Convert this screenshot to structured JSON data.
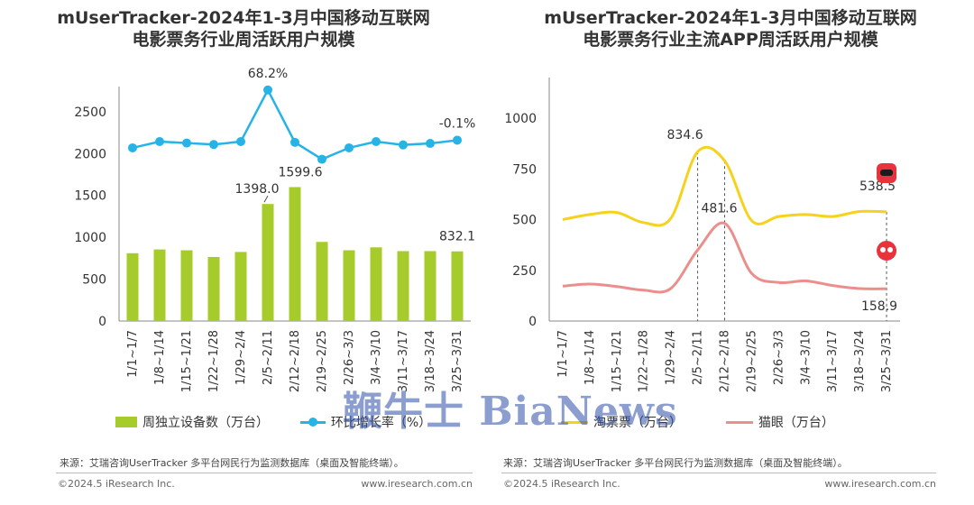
{
  "watermark": "鞭牛士 BiaNews",
  "left": {
    "title_line1": "mUserTracker-2024年1-3月中国移动互联网",
    "title_line2": "电影票务行业周活跃用户规模",
    "legend": {
      "bar": "周独立设备数（万台）",
      "line": "环比增长率（%）"
    },
    "source": "来源：艾瑞咨询UserTracker 多平台网民行为监测数据库（桌面及智能终端）。",
    "copyright": "©2024.5 iResearch Inc.",
    "site": "www.iresearch.com.cn"
  },
  "right": {
    "title_line1": "mUserTracker-2024年1-3月中国移动互联网",
    "title_line2": "电影票务行业主流APP周活跃用户规模",
    "legend": {
      "taopiaopiao": "淘票票（万台）",
      "maoyan": "猫眼（万台）"
    },
    "source": "来源：艾瑞咨询UserTracker 多平台网民行为监测数据库（桌面及智能终端）。",
    "copyright": "©2024.5 iResearch Inc.",
    "site": "www.iresearch.com.cn"
  },
  "chart_data": [
    {
      "type": "bar",
      "categories": [
        "1/1~1/7",
        "1/8~1/14",
        "1/15~1/21",
        "1/22~1/28",
        "1/29~2/4",
        "2/5~2/11",
        "2/12~2/18",
        "2/19~2/25",
        "2/26~3/3",
        "3/4~3/10",
        "3/11~3/17",
        "3/18~3/24",
        "3/25~3/31"
      ],
      "series": [
        {
          "name": "周独立设备数（万台）",
          "type": "bar",
          "color": "#a5cc2a",
          "values": [
            810,
            855,
            845,
            765,
            825,
            1398.0,
            1599.6,
            945,
            845,
            880,
            835,
            835,
            832.1
          ]
        },
        {
          "name": "环比增长率（%）",
          "type": "line",
          "color": "#26b4e6",
          "values": [
            -10.5,
            -2.0,
            -4.0,
            -6.0,
            -2.0,
            68.2,
            -3.0,
            -26.0,
            -10.5,
            -2.0,
            -6.5,
            -4.5,
            -0.1
          ]
        }
      ],
      "data_labels": [
        {
          "series": 0,
          "index": 5,
          "text": "1398.0"
        },
        {
          "series": 0,
          "index": 6,
          "text": "1599.6"
        },
        {
          "series": 0,
          "index": 12,
          "text": "832.1"
        },
        {
          "series": 1,
          "index": 5,
          "text": "68.2%"
        },
        {
          "series": 1,
          "index": 12,
          "text": "-0.1%"
        }
      ],
      "yticks": [
        0,
        500,
        1000,
        1500,
        2000,
        2500
      ],
      "ylim": [
        0,
        2800
      ],
      "grid": false,
      "legend": "bottom"
    },
    {
      "type": "line",
      "categories": [
        "1/1~1/7",
        "1/8~1/14",
        "1/15~1/21",
        "1/22~1/28",
        "1/29~2/4",
        "2/5~2/11",
        "2/12~2/18",
        "2/19~2/25",
        "2/26~3/3",
        "3/4~3/10",
        "3/11~3/17",
        "3/18~3/24",
        "3/25~3/31"
      ],
      "series": [
        {
          "name": "淘票票（万台）",
          "color": "#f7d21c",
          "values": [
            500,
            525,
            535,
            485,
            505,
            834.6,
            790,
            495,
            515,
            525,
            515,
            540,
            538.5
          ]
        },
        {
          "name": "猫眼（万台）",
          "color": "#eb8f8c",
          "values": [
            172,
            182,
            170,
            152,
            160,
            350,
            481.6,
            235,
            190,
            198,
            175,
            160,
            158.9
          ]
        }
      ],
      "data_labels": [
        {
          "series": 0,
          "index": 5,
          "text": "834.6"
        },
        {
          "series": 1,
          "index": 6,
          "text": "481.6"
        },
        {
          "series": 0,
          "index": 12,
          "text": "538.5"
        },
        {
          "series": 1,
          "index": 12,
          "text": "158.9"
        }
      ],
      "dashed_markers": [
        5,
        6,
        12
      ],
      "yticks": [
        0,
        250,
        500,
        750,
        1000
      ],
      "ylim": [
        0,
        1200
      ],
      "grid": false,
      "legend": "bottom",
      "icons": [
        "taopiaopiao-app-icon",
        "maoyan-app-icon"
      ]
    }
  ]
}
